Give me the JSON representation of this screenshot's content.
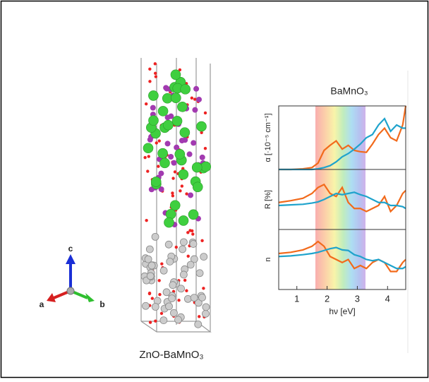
{
  "structure": {
    "label": "ZnO-BaMnO₃",
    "axes": {
      "a": "a",
      "b": "b",
      "c": "c"
    }
  },
  "chart_data": [
    {
      "type": "line",
      "title": "BaMnO₃",
      "ylabel": "α [·10⁻⁵ cm⁻¹]",
      "xlim": [
        0.4,
        4.6
      ],
      "ylim": [
        0,
        1
      ],
      "x": [
        0.4,
        0.8,
        1.2,
        1.5,
        1.7,
        1.9,
        2.1,
        2.3,
        2.5,
        2.7,
        2.9,
        3.1,
        3.3,
        3.5,
        3.7,
        3.9,
        4.1,
        4.3,
        4.5,
        4.6
      ],
      "series": [
        {
          "color": "#f26a1b",
          "values": [
            0,
            0,
            0.01,
            0.03,
            0.1,
            0.3,
            0.38,
            0.45,
            0.32,
            0.38,
            0.3,
            0.28,
            0.27,
            0.4,
            0.55,
            0.65,
            0.5,
            0.45,
            0.7,
            1.0
          ]
        },
        {
          "color": "#1fa3cc",
          "values": [
            0,
            0,
            0,
            0,
            0.01,
            0.03,
            0.06,
            0.12,
            0.2,
            0.25,
            0.32,
            0.4,
            0.5,
            0.55,
            0.7,
            0.8,
            0.6,
            0.7,
            0.65,
            0.65
          ]
        }
      ]
    },
    {
      "type": "line",
      "ylabel": "R [%]",
      "xlim": [
        0.4,
        4.6
      ],
      "ylim": [
        0,
        1
      ],
      "x": [
        0.4,
        0.8,
        1.2,
        1.5,
        1.7,
        1.9,
        2.1,
        2.3,
        2.5,
        2.7,
        2.9,
        3.1,
        3.3,
        3.5,
        3.7,
        3.9,
        4.1,
        4.3,
        4.5,
        4.6
      ],
      "series": [
        {
          "color": "#f26a1b",
          "values": [
            0.45,
            0.48,
            0.52,
            0.6,
            0.7,
            0.75,
            0.6,
            0.55,
            0.7,
            0.45,
            0.35,
            0.35,
            0.3,
            0.35,
            0.4,
            0.55,
            0.3,
            0.4,
            0.6,
            0.65
          ]
        },
        {
          "color": "#1fa3cc",
          "values": [
            0.4,
            0.41,
            0.42,
            0.44,
            0.46,
            0.5,
            0.55,
            0.6,
            0.58,
            0.6,
            0.62,
            0.58,
            0.55,
            0.5,
            0.45,
            0.45,
            0.4,
            0.4,
            0.38,
            0.35
          ]
        }
      ]
    },
    {
      "type": "line",
      "ylabel": "n",
      "xlabel": "hν [eV]",
      "xlim": [
        0.4,
        4.6
      ],
      "ylim": [
        0,
        1
      ],
      "xticks": [
        1,
        2,
        3,
        4
      ],
      "x": [
        0.4,
        0.8,
        1.2,
        1.5,
        1.7,
        1.9,
        2.1,
        2.3,
        2.5,
        2.7,
        2.9,
        3.1,
        3.3,
        3.5,
        3.7,
        3.9,
        4.1,
        4.3,
        4.5,
        4.6
      ],
      "series": [
        {
          "color": "#f26a1b",
          "values": [
            0.6,
            0.62,
            0.66,
            0.72,
            0.8,
            0.72,
            0.55,
            0.5,
            0.45,
            0.5,
            0.35,
            0.4,
            0.35,
            0.45,
            0.5,
            0.45,
            0.3,
            0.3,
            0.45,
            0.5
          ]
        },
        {
          "color": "#1fa3cc",
          "values": [
            0.55,
            0.56,
            0.58,
            0.6,
            0.62,
            0.65,
            0.68,
            0.7,
            0.66,
            0.65,
            0.58,
            0.55,
            0.5,
            0.48,
            0.5,
            0.45,
            0.4,
            0.35,
            0.35,
            0.38
          ]
        }
      ]
    }
  ]
}
